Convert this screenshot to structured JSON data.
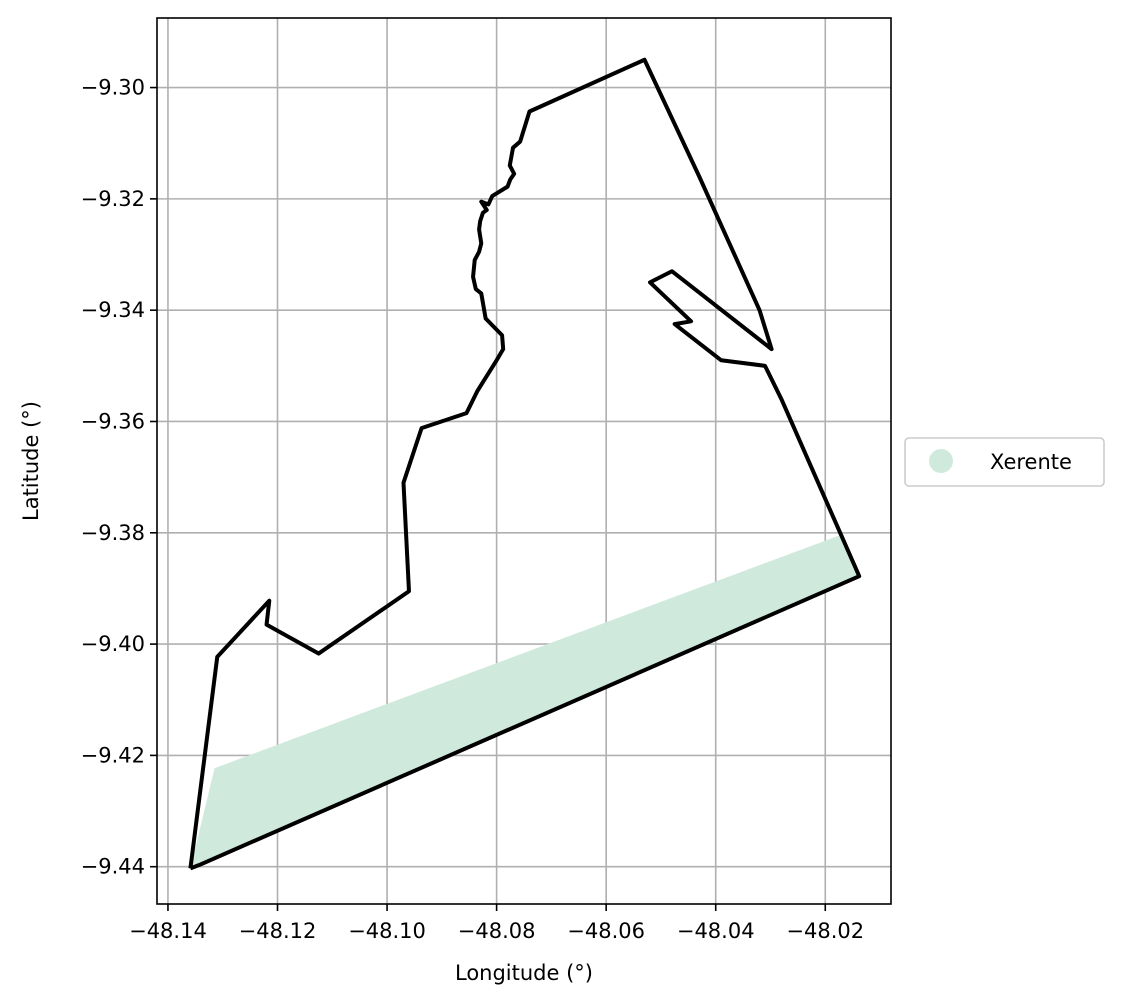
{
  "chart_data": {
    "type": "map",
    "xlabel": "Longitude (°)",
    "ylabel": "Latitude (°)",
    "xlim": [
      -48.142,
      -48.008
    ],
    "ylim": [
      -9.4467,
      -9.2875
    ],
    "grid": true,
    "x_ticks": [
      -48.14,
      -48.12,
      -48.1,
      -48.08,
      -48.06,
      -48.04,
      -48.02
    ],
    "x_tick_labels": [
      "−48.14",
      "−48.12",
      "−48.10",
      "−48.08",
      "−48.06",
      "−48.04",
      "−48.02"
    ],
    "y_ticks": [
      -9.3,
      -9.32,
      -9.34,
      -9.36,
      -9.38,
      -9.4,
      -9.42,
      -9.44
    ],
    "y_tick_labels": [
      "−9.30",
      "−9.32",
      "−9.34",
      "−9.36",
      "−9.38",
      "−9.40",
      "−9.42",
      "−9.44"
    ],
    "legend": {
      "placement": "center-right-outside",
      "entries": [
        {
          "label": "Xerente",
          "color": "#cfeadd"
        }
      ]
    },
    "fill_region": {
      "name": "Xerente",
      "color": "#cfeadd",
      "points": [
        [
          -48.1315,
          -9.4223
        ],
        [
          -48.0175,
          -9.3805
        ],
        [
          -48.0138,
          -9.3878
        ],
        [
          -48.1343,
          -9.4397
        ],
        [
          -48.1359,
          -9.4403
        ]
      ]
    },
    "boundary_outer": {
      "color": "#000000",
      "points": [
        [
          -48.1359,
          -9.4403
        ],
        [
          -48.131,
          -9.4023
        ],
        [
          -48.1215,
          -9.3922
        ],
        [
          -48.122,
          -9.3965
        ],
        [
          -48.1125,
          -9.4017
        ],
        [
          -48.096,
          -9.3905
        ],
        [
          -48.097,
          -9.371
        ],
        [
          -48.0937,
          -9.3612
        ],
        [
          -48.0855,
          -9.3585
        ],
        [
          -48.0835,
          -9.3545
        ],
        [
          -48.08,
          -9.349
        ],
        [
          -48.0788,
          -9.347
        ],
        [
          -48.079,
          -9.3445
        ],
        [
          -48.082,
          -9.3415
        ],
        [
          -48.0828,
          -9.337
        ],
        [
          -48.0838,
          -9.3362
        ],
        [
          -48.0843,
          -9.334
        ],
        [
          -48.084,
          -9.331
        ],
        [
          -48.0832,
          -9.3295
        ],
        [
          -48.0828,
          -9.328
        ],
        [
          -48.0832,
          -9.3255
        ],
        [
          -48.083,
          -9.324
        ],
        [
          -48.0825,
          -9.3225
        ],
        [
          -48.0818,
          -9.322
        ],
        [
          -48.0828,
          -9.3205
        ],
        [
          -48.0815,
          -9.321
        ],
        [
          -48.0808,
          -9.3195
        ],
        [
          -48.078,
          -9.3178
        ],
        [
          -48.0775,
          -9.3165
        ],
        [
          -48.0768,
          -9.3155
        ],
        [
          -48.0776,
          -9.314
        ],
        [
          -48.077,
          -9.3108
        ],
        [
          -48.0757,
          -9.3097
        ],
        [
          -48.074,
          -9.3043
        ],
        [
          -48.053,
          -9.295
        ],
        [
          -48.043,
          -9.316
        ],
        [
          -48.032,
          -9.34
        ],
        [
          -48.0298,
          -9.347
        ],
        [
          -48.048,
          -9.333
        ],
        [
          -48.052,
          -9.335
        ],
        [
          -48.0445,
          -9.342
        ],
        [
          -48.0475,
          -9.3425
        ],
        [
          -48.039,
          -9.349
        ],
        [
          -48.031,
          -9.35
        ],
        [
          -48.028,
          -9.356
        ],
        [
          -48.0138,
          -9.3878
        ],
        [
          -48.1343,
          -9.4397
        ],
        [
          -48.1359,
          -9.4403
        ]
      ]
    }
  }
}
